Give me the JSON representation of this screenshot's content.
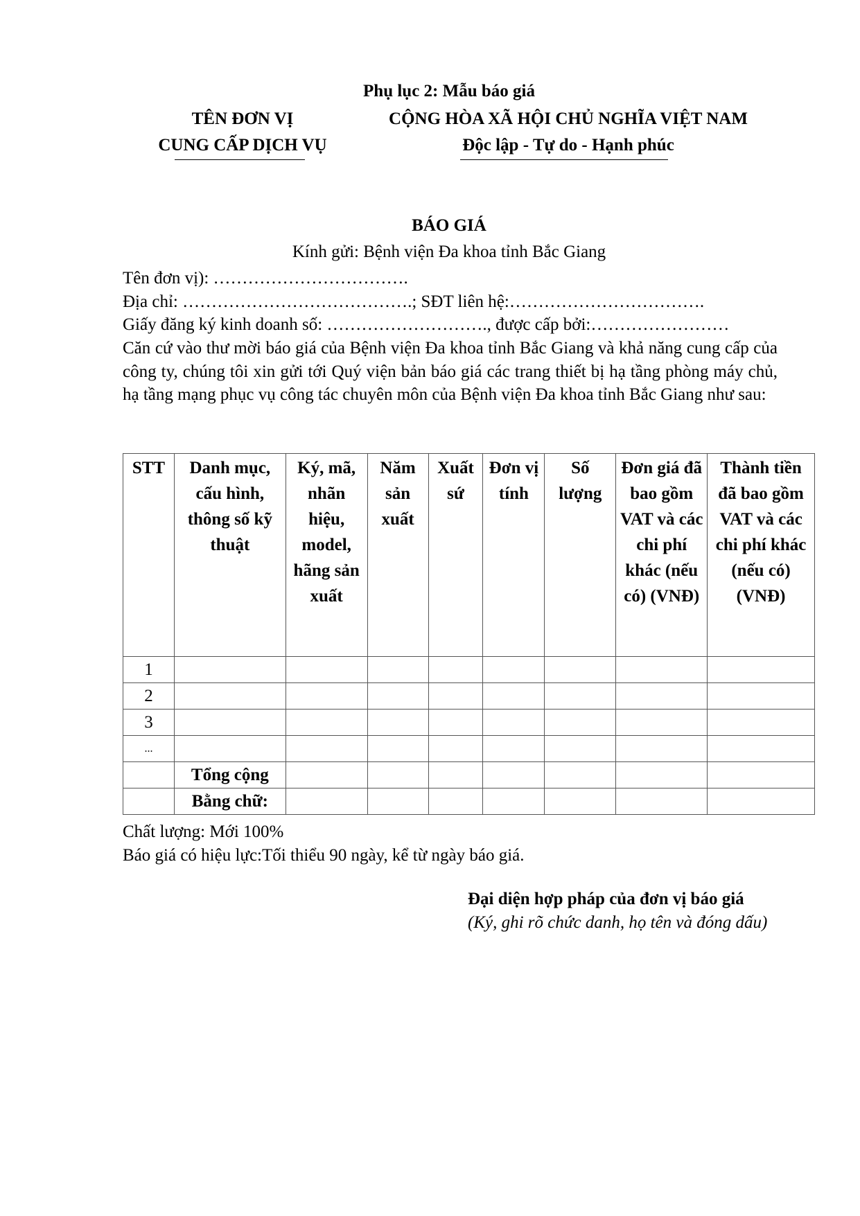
{
  "appendix_title": "Phụ lục 2: Mẫu báo giá",
  "left_header": {
    "line1": "TÊN ĐƠN VỊ",
    "line2": "CUNG CẤP DỊCH VỤ"
  },
  "right_header": {
    "line1": "CỘNG HÒA XÃ HỘI CHỦ NGHĨA VIỆT NAM",
    "line2": "Độc lập - Tự do - Hạnh phúc"
  },
  "doc_title": "BÁO GIÁ",
  "recipient": "Kính gửi: Bệnh viện Đa khoa tỉnh Bắc Giang",
  "fields": [
    "Tên đơn vị): …………………………….",
    "Địa chỉ: ………………………………….; SĐT liên hệ:…………………………….",
    "Giấy đăng ký kinh doanh số: ………………………., được cấp bởi:……………………"
  ],
  "intro": "Căn cứ vào thư mời báo giá của Bệnh viện Đa khoa tỉnh Bắc Giang và khả năng cung cấp của công ty, chúng tôi xin gửi tới Quý viện bản báo giá các trang thiết bị hạ tầng phòng máy chủ, hạ tầng mạng  phục vụ công tác chuyên môn của Bệnh viện Đa khoa tỉnh Bắc Giang như sau:",
  "table": {
    "headers": [
      "STT",
      "Danh mục, cấu hình, thông số kỹ thuật",
      "Ký, mã, nhãn hiệu, model, hãng sản xuất",
      "Năm sản xuất",
      "Xuất sứ",
      "Đơn vị tính",
      "Số lượng",
      "Đơn giá đã bao gồm VAT và các chi phí khác (nếu có) (VNĐ)",
      "Thành tiền đã bao gồm VAT và các chi phí khác (nếu có) (VNĐ)"
    ],
    "rows": [
      {
        "stt": "1",
        "label": ""
      },
      {
        "stt": "2",
        "label": ""
      },
      {
        "stt": "3",
        "label": ""
      },
      {
        "stt": "...",
        "label": ""
      },
      {
        "stt": "",
        "label": "Tổng cộng"
      },
      {
        "stt": "",
        "label": "Bằng chữ:"
      }
    ]
  },
  "quality": "Chất lượng: Mới 100%",
  "validity": "Báo giá có hiệu lực:Tối thiểu 90 ngày, kể từ ngày báo giá.",
  "signature": {
    "title": "Đại diện hợp pháp của đơn vị báo giá",
    "note": "(Ký, ghi rõ chức danh, họ tên và đóng dấu)"
  }
}
